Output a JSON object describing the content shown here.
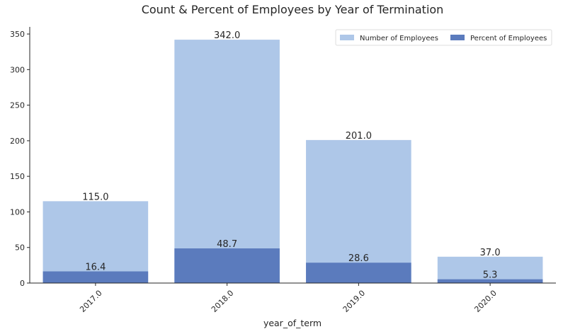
{
  "chart_data": {
    "type": "bar",
    "title": "Count & Percent of Employees by Year of Termination",
    "xlabel": "year_of_term",
    "ylabel": "",
    "categories": [
      "2017.0",
      "2018.0",
      "2019.0",
      "2020.0"
    ],
    "series": [
      {
        "name": "Number of Employees",
        "values": [
          115.0,
          342.0,
          201.0,
          37.0
        ],
        "labels": [
          "115.0",
          "342.0",
          "201.0",
          "37.0"
        ],
        "color": "#aec7e8"
      },
      {
        "name": "Percent of Employees",
        "values": [
          16.4,
          48.7,
          28.6,
          5.3
        ],
        "labels": [
          "16.4",
          "48.7",
          "28.6",
          "5.3"
        ],
        "color": "#5b7bbd"
      }
    ],
    "ylim": [
      0,
      360
    ],
    "yticks": [
      0,
      50,
      100,
      150,
      200,
      250,
      300,
      350
    ],
    "ytick_labels": [
      "0",
      "50",
      "100",
      "150",
      "200",
      "250",
      "300",
      "350"
    ],
    "overlay": true,
    "grid": false,
    "legend_position": "top-right",
    "xtick_rotation": -45
  }
}
